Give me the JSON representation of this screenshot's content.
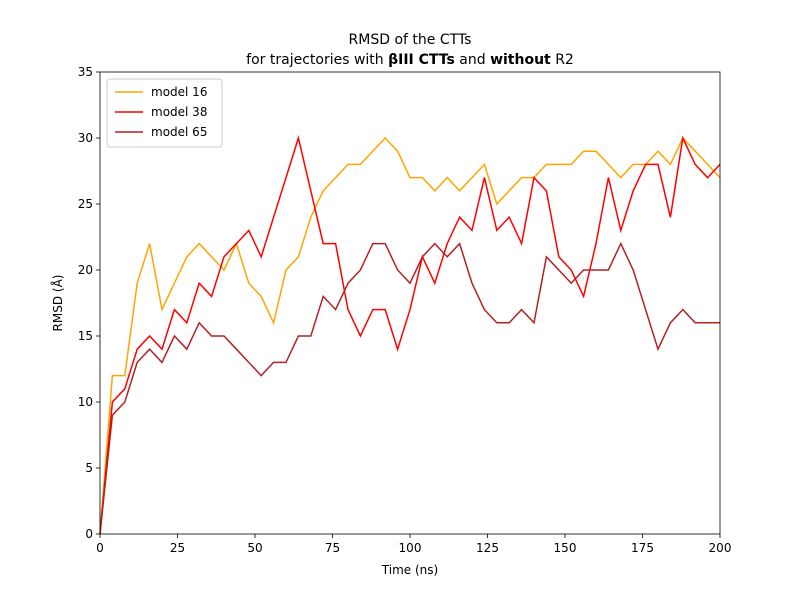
{
  "chart_data": {
    "type": "line",
    "title": "RMSD of the CTTs",
    "subtitle": [
      {
        "text": "for trajectories with",
        "bold": false
      },
      {
        "text": "βIII CTTs",
        "bold": true
      },
      {
        "text": "and",
        "bold": false
      },
      {
        "text": "without",
        "bold": true
      },
      {
        "text": "R2",
        "bold": false
      }
    ],
    "x_label": "Time (ns)",
    "y_label": "RMSD (Å)",
    "xlim": [
      0,
      200
    ],
    "ylim": [
      0,
      35
    ],
    "xticks": [
      0,
      25,
      50,
      75,
      100,
      125,
      150,
      175,
      200
    ],
    "yticks": [
      0,
      5,
      10,
      15,
      20,
      25,
      30,
      35
    ],
    "legend": "upper left",
    "x": [
      0,
      4,
      8,
      12,
      16,
      20,
      24,
      28,
      32,
      36,
      40,
      44,
      48,
      52,
      56,
      60,
      64,
      68,
      72,
      76,
      80,
      84,
      88,
      92,
      96,
      100,
      104,
      108,
      112,
      116,
      120,
      124,
      128,
      132,
      136,
      140,
      144,
      148,
      152,
      156,
      160,
      164,
      168,
      172,
      176,
      180,
      184,
      188,
      192,
      196,
      200
    ],
    "series": [
      {
        "name": "model 16",
        "color": "#ffa500",
        "values": [
          0,
          12,
          12,
          19,
          22,
          17,
          19,
          21,
          22,
          21,
          20,
          22,
          19,
          18,
          16,
          20,
          21,
          24,
          26,
          27,
          28,
          28,
          29,
          30,
          29,
          27,
          27,
          26,
          27,
          26,
          27,
          28,
          25,
          26,
          27,
          27,
          28,
          28,
          28,
          29,
          29,
          28,
          27,
          28,
          28,
          29,
          28,
          30,
          29,
          28,
          27
        ]
      },
      {
        "name": "model 38",
        "color": "#ff0000",
        "values": [
          0,
          10,
          11,
          14,
          15,
          14,
          17,
          16,
          19,
          18,
          21,
          22,
          23,
          21,
          24,
          27,
          30,
          26,
          22,
          22,
          17,
          15,
          17,
          17,
          14,
          17,
          21,
          19,
          22,
          24,
          23,
          27,
          23,
          24,
          22,
          27,
          26,
          21,
          20,
          18,
          22,
          27,
          23,
          26,
          28,
          28,
          24,
          30,
          28,
          27,
          28
        ]
      },
      {
        "name": "model 65",
        "color": "#b22222",
        "values": [
          0,
          9,
          10,
          13,
          14,
          13,
          15,
          14,
          16,
          15,
          15,
          14,
          13,
          12,
          13,
          13,
          15,
          15,
          18,
          17,
          19,
          20,
          22,
          22,
          20,
          19,
          21,
          22,
          21,
          22,
          19,
          17,
          16,
          16,
          17,
          16,
          21,
          20,
          19,
          20,
          20,
          20,
          22,
          20,
          17,
          14,
          16,
          17,
          16,
          16,
          16
        ]
      }
    ]
  }
}
